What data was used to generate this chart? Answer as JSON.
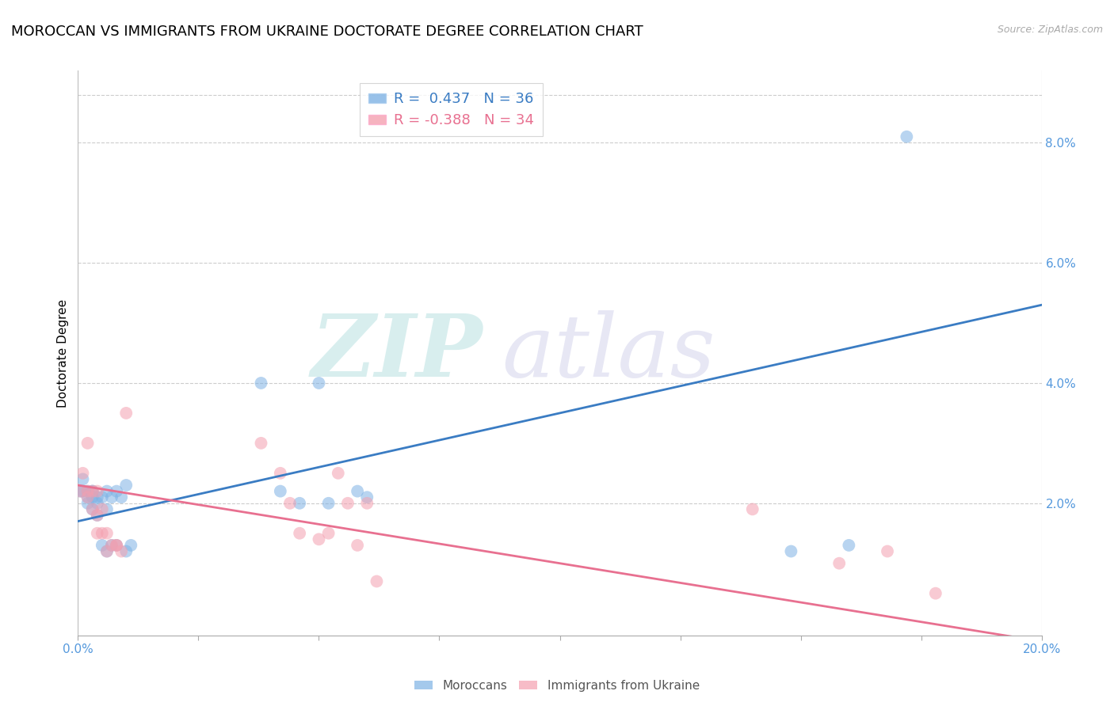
{
  "title": "MOROCCAN VS IMMIGRANTS FROM UKRAINE DOCTORATE DEGREE CORRELATION CHART",
  "source": "Source: ZipAtlas.com",
  "ylabel": "Doctorate Degree",
  "legend_entries": [
    "Moroccans",
    "Immigrants from Ukraine"
  ],
  "r_moroccan": 0.437,
  "n_moroccan": 36,
  "r_ukraine": -0.388,
  "n_ukraine": 34,
  "blue_color": "#7EB2E4",
  "pink_color": "#F4A0B0",
  "blue_line_color": "#3A7CC3",
  "pink_line_color": "#E87090",
  "axis_tick_color": "#5599DD",
  "xlim": [
    0,
    0.2
  ],
  "ylim": [
    -0.002,
    0.092
  ],
  "yticks_right": [
    0.02,
    0.04,
    0.06,
    0.08
  ],
  "moroccan_x": [
    0.0005,
    0.001,
    0.001,
    0.002,
    0.002,
    0.002,
    0.003,
    0.003,
    0.003,
    0.003,
    0.004,
    0.004,
    0.004,
    0.005,
    0.005,
    0.006,
    0.006,
    0.006,
    0.007,
    0.007,
    0.008,
    0.008,
    0.009,
    0.01,
    0.01,
    0.011,
    0.038,
    0.042,
    0.046,
    0.05,
    0.052,
    0.058,
    0.06,
    0.148,
    0.16,
    0.172
  ],
  "moroccan_y": [
    0.022,
    0.024,
    0.022,
    0.022,
    0.021,
    0.02,
    0.022,
    0.021,
    0.022,
    0.019,
    0.021,
    0.02,
    0.018,
    0.021,
    0.013,
    0.019,
    0.012,
    0.022,
    0.021,
    0.013,
    0.013,
    0.022,
    0.021,
    0.023,
    0.012,
    0.013,
    0.04,
    0.022,
    0.02,
    0.04,
    0.02,
    0.022,
    0.021,
    0.012,
    0.013,
    0.081
  ],
  "ukraine_x": [
    0.0005,
    0.001,
    0.002,
    0.002,
    0.002,
    0.003,
    0.003,
    0.004,
    0.004,
    0.004,
    0.005,
    0.005,
    0.006,
    0.006,
    0.007,
    0.008,
    0.008,
    0.009,
    0.01,
    0.038,
    0.042,
    0.044,
    0.046,
    0.05,
    0.052,
    0.054,
    0.056,
    0.058,
    0.06,
    0.062,
    0.14,
    0.158,
    0.168,
    0.178
  ],
  "ukraine_y": [
    0.022,
    0.025,
    0.03,
    0.022,
    0.021,
    0.022,
    0.019,
    0.022,
    0.018,
    0.015,
    0.019,
    0.015,
    0.015,
    0.012,
    0.013,
    0.013,
    0.013,
    0.012,
    0.035,
    0.03,
    0.025,
    0.02,
    0.015,
    0.014,
    0.015,
    0.025,
    0.02,
    0.013,
    0.02,
    0.007,
    0.019,
    0.01,
    0.012,
    0.005
  ],
  "blue_trend_start_y": 0.017,
  "blue_trend_end_y": 0.053,
  "pink_trend_start_y": 0.023,
  "pink_trend_end_y": -0.003,
  "background_color": "#FFFFFF",
  "grid_color": "#CCCCCC",
  "title_fontsize": 13,
  "label_fontsize": 11,
  "tick_fontsize": 11,
  "marker_size": 130,
  "marker_alpha": 0.55
}
